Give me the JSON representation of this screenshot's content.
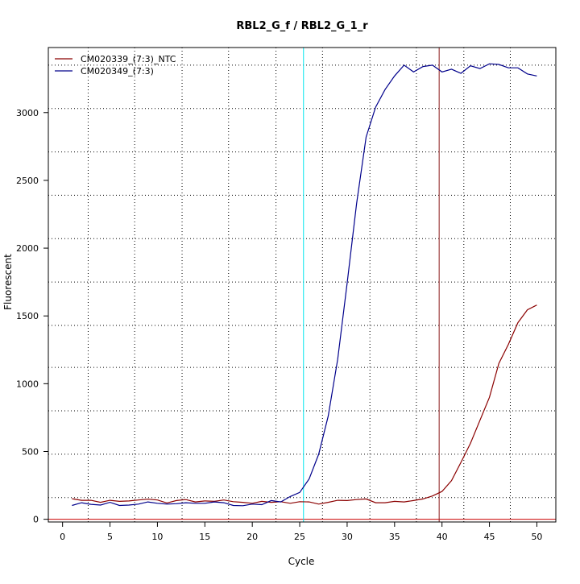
{
  "chart_data": {
    "type": "line",
    "title": "RBL2_G_f / RBL2_G_1_r",
    "xlabel": "Cycle",
    "ylabel": "Fluorescent",
    "xlim": [
      -1.5,
      52
    ],
    "ylim": [
      -20,
      3480
    ],
    "xticks": [
      0,
      5,
      10,
      15,
      20,
      25,
      30,
      35,
      40,
      45,
      50
    ],
    "yticks": [
      0,
      500,
      1000,
      1500,
      2000,
      2500,
      3000
    ],
    "grid": "dotted",
    "grid_x": [
      2.7,
      7.6,
      12.6,
      17.5,
      22.5,
      27.4,
      32.4,
      37.3,
      42.3,
      47.2
    ],
    "grid_y": [
      160,
      480,
      800,
      1120,
      1430,
      1750,
      2070,
      2390,
      2710,
      3030,
      3350
    ],
    "legend_position": "top-left",
    "threshold_line": {
      "y": 0,
      "color": "#cc0000"
    },
    "vertical_lines": [
      {
        "x": 25.4,
        "color": "#00e5ee"
      },
      {
        "x": 39.7,
        "color": "#8b1a1a"
      }
    ],
    "x": [
      1,
      2,
      3,
      4,
      5,
      6,
      7,
      8,
      9,
      10,
      11,
      12,
      13,
      14,
      15,
      16,
      17,
      18,
      19,
      20,
      21,
      22,
      23,
      24,
      25,
      26,
      27,
      28,
      29,
      30,
      31,
      32,
      33,
      34,
      35,
      36,
      37,
      38,
      39,
      40,
      41,
      42,
      43,
      44,
      45,
      46,
      47,
      48,
      49,
      50
    ],
    "series": [
      {
        "name": "CM020339_(7:3)_NTC",
        "color": "#8b0000",
        "values": [
          152,
          140,
          140,
          125,
          140,
          132,
          135,
          142,
          148,
          142,
          120,
          138,
          145,
          128,
          135,
          132,
          142,
          130,
          125,
          118,
          132,
          125,
          130,
          118,
          130,
          128,
          112,
          125,
          140,
          138,
          145,
          150,
          122,
          122,
          132,
          128,
          138,
          150,
          172,
          205,
          285,
          420,
          560,
          730,
          900,
          1150,
          1290,
          1450,
          1545,
          1580
        ]
      },
      {
        "name": "CM020349_(7:3)",
        "color": "#00008b",
        "values": [
          102,
          122,
          110,
          105,
          125,
          102,
          105,
          112,
          128,
          118,
          112,
          115,
          122,
          118,
          118,
          128,
          122,
          102,
          100,
          112,
          108,
          138,
          128,
          168,
          198,
          298,
          480,
          760,
          1180,
          1740,
          2330,
          2820,
          3040,
          3170,
          3270,
          3350,
          3300,
          3340,
          3350,
          3300,
          3320,
          3290,
          3345,
          3325,
          3360,
          3355,
          3330,
          3330,
          3285,
          3270
        ]
      }
    ]
  }
}
